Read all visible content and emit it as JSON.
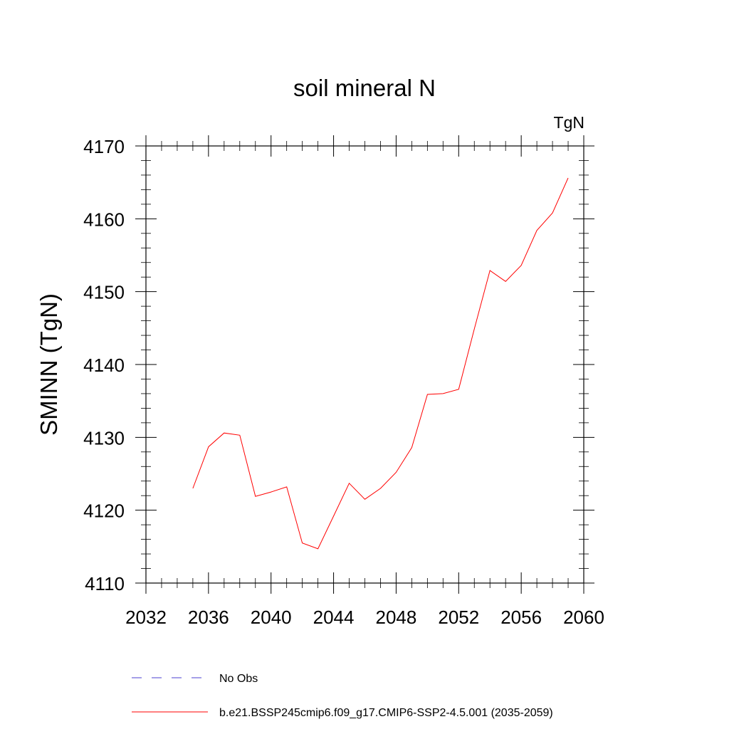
{
  "chart_data": {
    "type": "line",
    "title": "soil mineral N",
    "units_label": "TgN",
    "ylabel": "SMINN  (TgN)",
    "xlabel": "",
    "xlim": [
      2032,
      2060
    ],
    "ylim": [
      4110,
      4170
    ],
    "x_ticks": [
      2032,
      2036,
      2040,
      2044,
      2048,
      2052,
      2056,
      2060
    ],
    "y_ticks": [
      4110,
      4120,
      4130,
      4140,
      4150,
      4160,
      4170
    ],
    "grid": false,
    "legend_position": "bottom",
    "series": [
      {
        "name": "No Obs",
        "color": "#4b3fd1",
        "style": "dashed",
        "x": [],
        "y": []
      },
      {
        "name": "b.e21.BSSP245cmip6.f09_g17.CMIP6-SSP2-4.5.001 (2035-2059)",
        "color": "#ff0000",
        "style": "solid",
        "x": [
          2035,
          2036,
          2037,
          2038,
          2039,
          2040,
          2041,
          2042,
          2043,
          2044,
          2045,
          2046,
          2047,
          2048,
          2049,
          2050,
          2051,
          2052,
          2053,
          2054,
          2055,
          2056,
          2057,
          2058,
          2059
        ],
        "y": [
          4123.0,
          4128.7,
          4130.6,
          4130.3,
          4121.9,
          4122.5,
          4123.2,
          4115.5,
          4114.7,
          4119.2,
          4123.7,
          4121.5,
          4123.0,
          4125.2,
          4128.6,
          4135.9,
          4136.0,
          4136.6,
          4144.9,
          4152.9,
          4151.4,
          4153.6,
          4158.4,
          4160.8,
          4165.6
        ]
      }
    ]
  }
}
